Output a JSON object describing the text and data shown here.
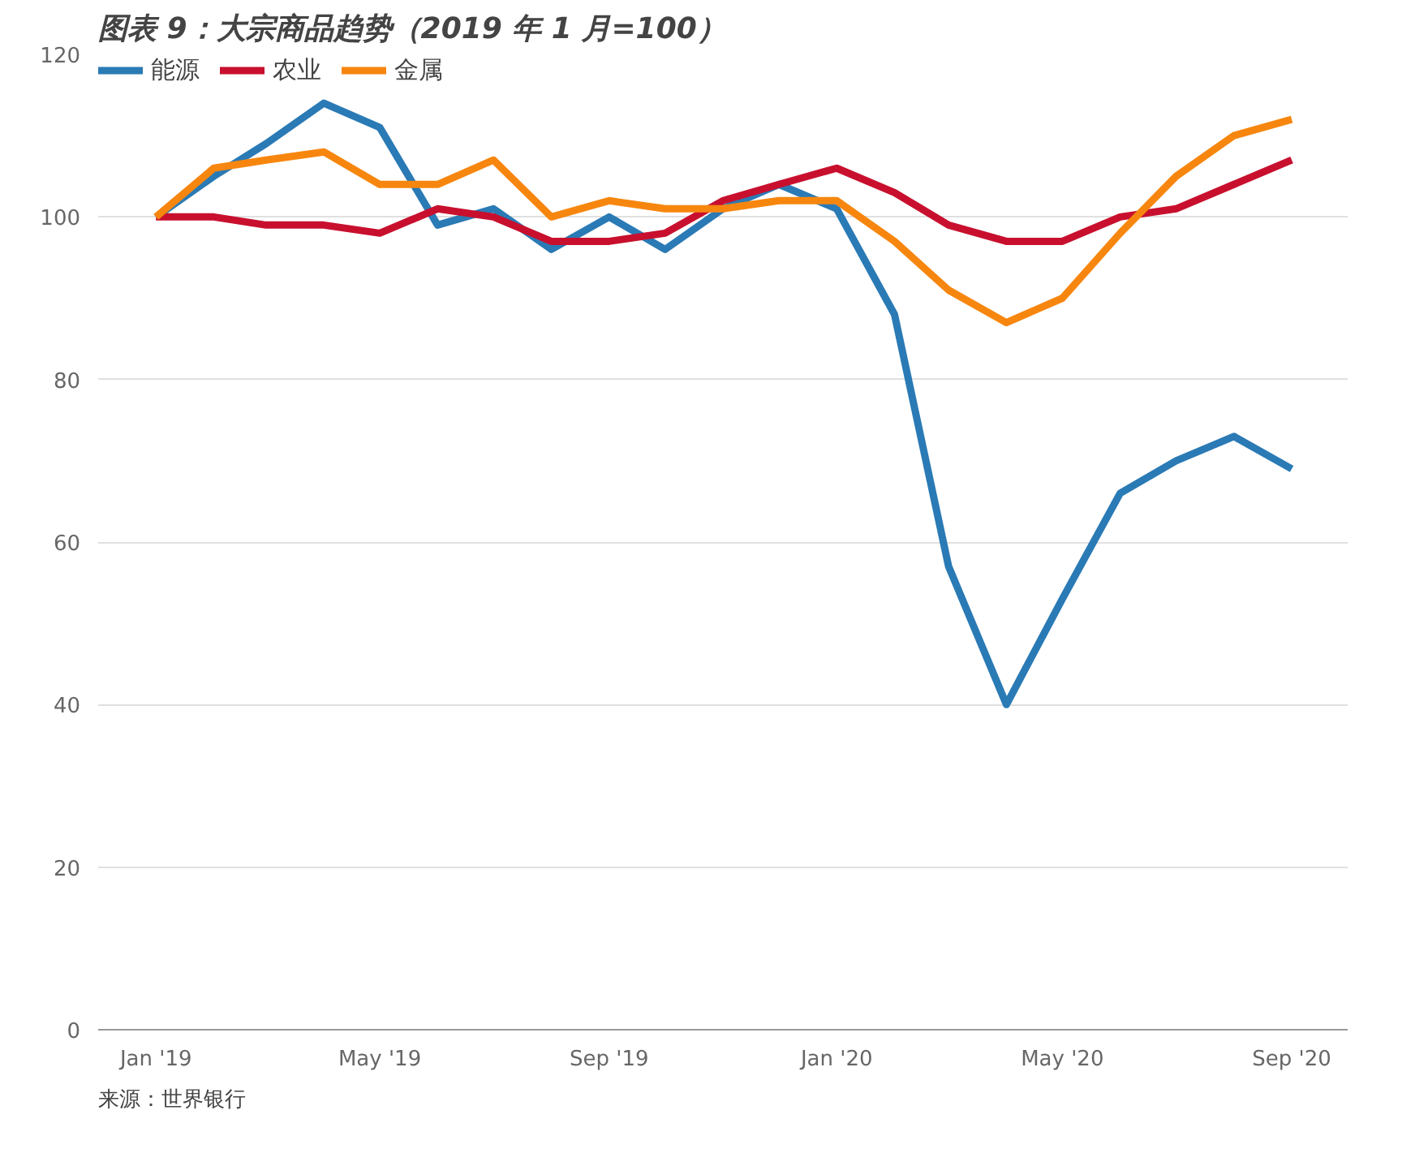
{
  "chart_data": {
    "type": "line",
    "title": "图表 9：大宗商品趋势（2019 年 1 月=100）",
    "x": [
      "2019-01",
      "2019-02",
      "2019-03",
      "2019-04",
      "2019-05",
      "2019-06",
      "2019-07",
      "2019-08",
      "2019-09",
      "2019-10",
      "2019-11",
      "2019-12",
      "2020-01",
      "2020-02",
      "2020-03",
      "2020-04",
      "2020-05",
      "2020-06",
      "2020-07",
      "2020-08",
      "2020-09"
    ],
    "series": [
      {
        "name": "能源",
        "color": "#2a7ab5",
        "values": [
          100,
          105,
          109,
          114,
          111,
          99,
          101,
          96,
          100,
          96,
          101,
          104,
          101,
          88,
          57,
          40,
          53,
          66,
          70,
          73,
          69
        ]
      },
      {
        "name": "农业",
        "color": "#c8102e",
        "values": [
          100,
          100,
          99,
          99,
          98,
          101,
          100,
          97,
          97,
          98,
          102,
          104,
          106,
          103,
          99,
          97,
          97,
          100,
          101,
          104,
          107
        ]
      },
      {
        "name": "金属",
        "color": "#f7860f",
        "values": [
          100,
          106,
          107,
          108,
          104,
          104,
          107,
          100,
          102,
          101,
          101,
          102,
          102,
          97,
          91,
          87,
          90,
          98,
          105,
          110,
          112
        ]
      }
    ],
    "xlim": [
      "2018-12",
      "2020-10"
    ],
    "xticks": [
      {
        "value": "2019-01",
        "label": "Jan '19"
      },
      {
        "value": "2019-05",
        "label": "May '19"
      },
      {
        "value": "2019-09",
        "label": "Sep '19"
      },
      {
        "value": "2020-01",
        "label": "Jan '20"
      },
      {
        "value": "2020-05",
        "label": "May '20"
      },
      {
        "value": "2020-09",
        "label": "Sep '20"
      }
    ],
    "ylim": [
      0,
      120
    ],
    "yticks": [
      0,
      20,
      40,
      60,
      80,
      100,
      120
    ],
    "grid": "y",
    "legend": "top left",
    "marker": "none",
    "line_style": "solid",
    "annotations": [
      "来源：世界银行"
    ]
  }
}
